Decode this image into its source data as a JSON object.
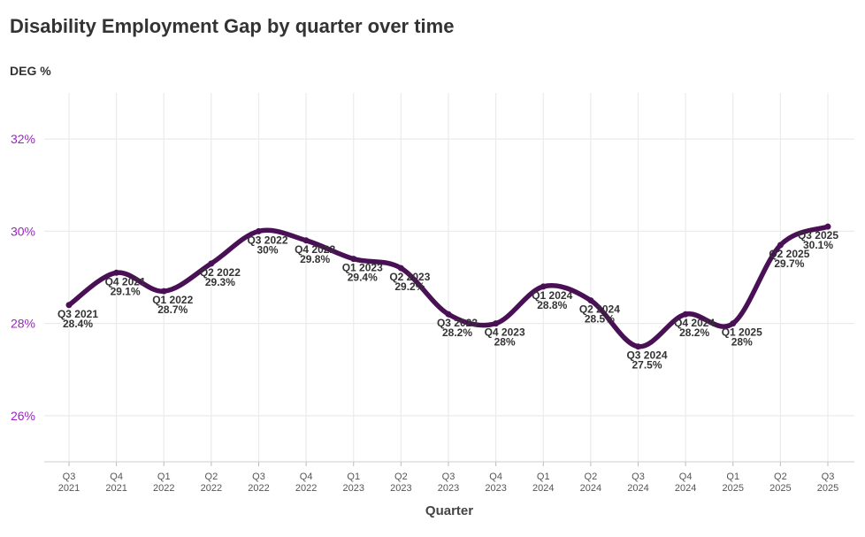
{
  "chart_data": {
    "type": "line",
    "title": "Disability Employment Gap by quarter over time",
    "ylabel": "DEG %",
    "xlabel": "Quarter",
    "ylim": [
      25,
      33
    ],
    "yticks": [
      26,
      28,
      30,
      32
    ],
    "ytick_labels": [
      "26%",
      "28%",
      "30%",
      "32%"
    ],
    "categories": [
      {
        "q": "Q3",
        "y": "2021"
      },
      {
        "q": "Q4",
        "y": "2021"
      },
      {
        "q": "Q1",
        "y": "2022"
      },
      {
        "q": "Q2",
        "y": "2022"
      },
      {
        "q": "Q3",
        "y": "2022"
      },
      {
        "q": "Q4",
        "y": "2022"
      },
      {
        "q": "Q1",
        "y": "2023"
      },
      {
        "q": "Q2",
        "y": "2023"
      },
      {
        "q": "Q3",
        "y": "2023"
      },
      {
        "q": "Q4",
        "y": "2023"
      },
      {
        "q": "Q1",
        "y": "2024"
      },
      {
        "q": "Q2",
        "y": "2024"
      },
      {
        "q": "Q3",
        "y": "2024"
      },
      {
        "q": "Q4",
        "y": "2024"
      },
      {
        "q": "Q1",
        "y": "2025"
      },
      {
        "q": "Q2",
        "y": "2025"
      },
      {
        "q": "Q3",
        "y": "2025"
      }
    ],
    "point_labels": [
      "Q3 2021",
      "Q4 2021",
      "Q1 2022",
      "Q2 2022",
      "Q3 2022",
      "Q4 2022",
      "Q1 2023",
      "Q2 2023",
      "Q3 2023",
      "Q4 2023",
      "Q1 2024",
      "Q2 2024",
      "Q3 2024",
      "Q4 2024",
      "Q1 2025",
      "Q2 2025",
      "Q3 2025"
    ],
    "value_labels": [
      "28.4%",
      "29.1%",
      "28.7%",
      "29.3%",
      "30%",
      "29.8%",
      "29.4%",
      "29.2%",
      "28.2%",
      "28%",
      "28.8%",
      "28.5%",
      "27.5%",
      "28.2%",
      "28%",
      "29.7%",
      "30.1%"
    ],
    "series": [
      {
        "name": "DEG %",
        "color": "#4a1055",
        "values": [
          28.4,
          29.1,
          28.7,
          29.3,
          30.0,
          29.8,
          29.4,
          29.2,
          28.2,
          28.0,
          28.8,
          28.5,
          27.5,
          28.2,
          28.0,
          29.7,
          30.1
        ]
      }
    ],
    "grid": true
  }
}
